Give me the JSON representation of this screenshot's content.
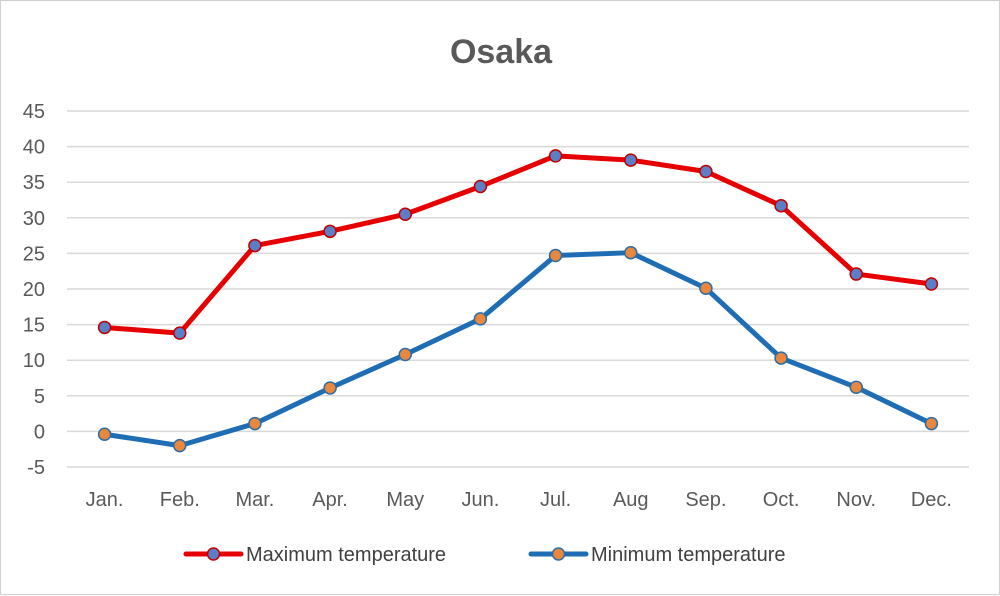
{
  "chart_data": {
    "type": "line",
    "title": "Osaka",
    "xlabel": "",
    "ylabel": "",
    "ylim": [
      -5,
      45
    ],
    "yticks": [
      -5,
      0,
      5,
      10,
      15,
      20,
      25,
      30,
      35,
      40,
      45
    ],
    "grid": true,
    "legend_position": "bottom",
    "categories": [
      "Jan.",
      "Feb.",
      "Mar.",
      "Apr.",
      "May",
      "Jun.",
      "Jul.",
      "Aug",
      "Sep.",
      "Oct.",
      "Nov.",
      "Dec."
    ],
    "series": [
      {
        "name": "Maximum temperature",
        "line_color": "#e60000",
        "marker_fill": "#5b7ec6",
        "marker_stroke": "#c00000",
        "values": [
          14.6,
          13.8,
          26.1,
          28.1,
          30.5,
          34.4,
          38.7,
          38.1,
          36.5,
          31.7,
          22.1,
          20.7
        ]
      },
      {
        "name": "Minimum temperature",
        "line_color": "#1f6db4",
        "marker_fill": "#e8883f",
        "marker_stroke": "#2e6da4",
        "values": [
          -0.4,
          -2.0,
          1.1,
          6.1,
          10.8,
          15.8,
          24.7,
          25.1,
          20.1,
          10.3,
          6.2,
          1.1
        ]
      }
    ]
  }
}
